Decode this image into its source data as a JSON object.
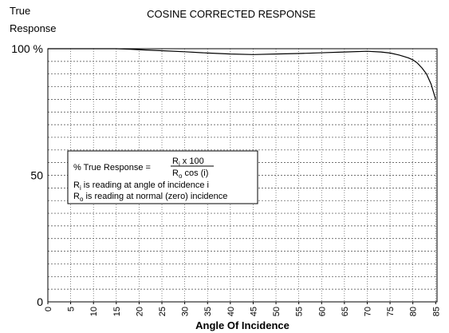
{
  "chart_data": {
    "type": "line",
    "title": "COSINE CORRECTED RESPONSE",
    "ylabel": [
      "True",
      "Response"
    ],
    "xlabel": "Angle Of Incidence",
    "x": [
      0,
      5,
      10,
      15,
      18,
      20,
      25,
      30,
      35,
      40,
      45,
      50,
      55,
      60,
      65,
      70,
      73,
      75,
      77,
      79,
      80,
      81,
      82,
      83,
      84,
      85
    ],
    "series": [
      {
        "color": "#000000",
        "values": [
          100,
          100,
          100,
          100,
          99.8,
          99.6,
          99.2,
          98.8,
          98.3,
          97.9,
          97.7,
          97.9,
          98.1,
          98.4,
          98.7,
          99,
          98.7,
          98.3,
          97.5,
          96.4,
          95.6,
          94.3,
          92.4,
          90,
          86,
          80
        ]
      }
    ],
    "xlim": [
      0,
      85.3
    ],
    "ylim": [
      0,
      100
    ],
    "xticks": [
      0,
      5,
      10,
      15,
      20,
      25,
      30,
      35,
      40,
      45,
      50,
      55,
      60,
      65,
      70,
      75,
      80,
      85
    ],
    "yticks": [
      {
        "value": 100,
        "label": "100 %"
      },
      50,
      0
    ],
    "yminorticks": [
      5,
      10,
      15,
      20,
      25,
      30,
      35,
      40,
      45,
      55,
      60,
      65,
      70,
      75,
      80,
      85,
      90,
      95
    ],
    "grid": true,
    "annotation": {
      "formula_label": "% True Response =",
      "numerator": [
        "R",
        "i",
        " x 100"
      ],
      "denominator": [
        "R",
        "o",
        " cos (i)"
      ],
      "lines": [
        [
          "R",
          "i",
          " is reading at angle of incidence i"
        ],
        [
          "R",
          "o",
          " is reading at normal (zero) incidence"
        ]
      ]
    }
  }
}
